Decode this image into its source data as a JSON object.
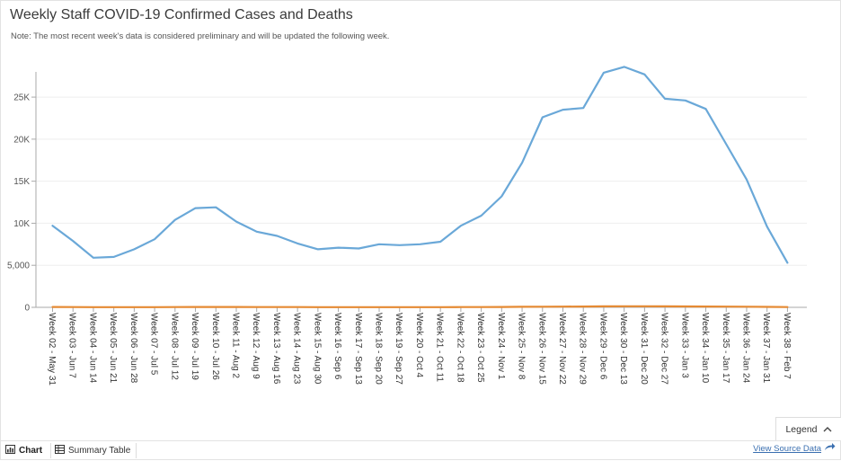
{
  "title": "Weekly Staff COVID-19 Confirmed Cases and Deaths",
  "note": "Note: The most recent week's data is considered preliminary and will be updated the following week.",
  "chart_data": {
    "type": "line",
    "title": "Weekly Staff COVID-19 Confirmed Cases and Deaths",
    "xlabel": "",
    "ylabel": "",
    "ylim": [
      0,
      28000
    ],
    "yticks": [
      0,
      5000,
      10000,
      15000,
      20000,
      25000
    ],
    "ytick_labels": [
      "0",
      "5,000",
      "10K",
      "15K",
      "20K",
      "25K"
    ],
    "grid": true,
    "categories": [
      "Week 02 - May 31",
      "Week 03 - Jun 7",
      "Week 04 - Jun 14",
      "Week 05 - Jun 21",
      "Week 06 - Jun 28",
      "Week 07 - Jul 5",
      "Week 08 - Jul 12",
      "Week 09 - Jul 19",
      "Week 10 - Jul 26",
      "Week 11 - Aug 2",
      "Week 12 - Aug 9",
      "Week 13 - Aug 16",
      "Week 14 - Aug 23",
      "Week 15 - Aug 30",
      "Week 16 - Sep 6",
      "Week 17 - Sep 13",
      "Week 18 - Sep 20",
      "Week 19 - Sep 27",
      "Week 20 - Oct 4",
      "Week 21 - Oct 11",
      "Week 22 - Oct 18",
      "Week 23 - Oct 25",
      "Week 24 - Nov 1",
      "Week 25 - Nov 8",
      "Week 26 - Nov 15",
      "Week 27 - Nov 22",
      "Week 28 - Nov 29",
      "Week 29 - Dec 6",
      "Week 30 - Dec 13",
      "Week 31 - Dec 20",
      "Week 32 - Dec 27",
      "Week 33 - Jan 3",
      "Week 34 - Jan 10",
      "Week 35 - Jan 17",
      "Week 36 - Jan 24",
      "Week 37 - Jan 31",
      "Week 38 - Feb 7"
    ],
    "series": [
      {
        "name": "Confirmed Cases",
        "color": "#6aa8d8",
        "values": [
          9700,
          7900,
          5900,
          6000,
          6900,
          8100,
          10400,
          11800,
          11900,
          10200,
          9000,
          8500,
          7600,
          6900,
          7100,
          7000,
          7500,
          7400,
          7500,
          7800,
          9700,
          10900,
          13200,
          17200,
          22600,
          23500,
          23700,
          27900,
          28600,
          27700,
          24800,
          24600,
          23600,
          19400,
          15200,
          9600,
          5300
        ]
      },
      {
        "name": "Deaths",
        "color": "#e58a33",
        "values": [
          40,
          30,
          20,
          20,
          20,
          20,
          30,
          40,
          40,
          40,
          30,
          30,
          30,
          20,
          20,
          20,
          20,
          20,
          20,
          20,
          30,
          30,
          40,
          60,
          80,
          90,
          100,
          120,
          130,
          130,
          120,
          110,
          100,
          90,
          70,
          50,
          30
        ]
      }
    ]
  },
  "legend_label": "Legend",
  "tabs": {
    "chart": "Chart",
    "table": "Summary Table"
  },
  "source_link": "View Source Data"
}
